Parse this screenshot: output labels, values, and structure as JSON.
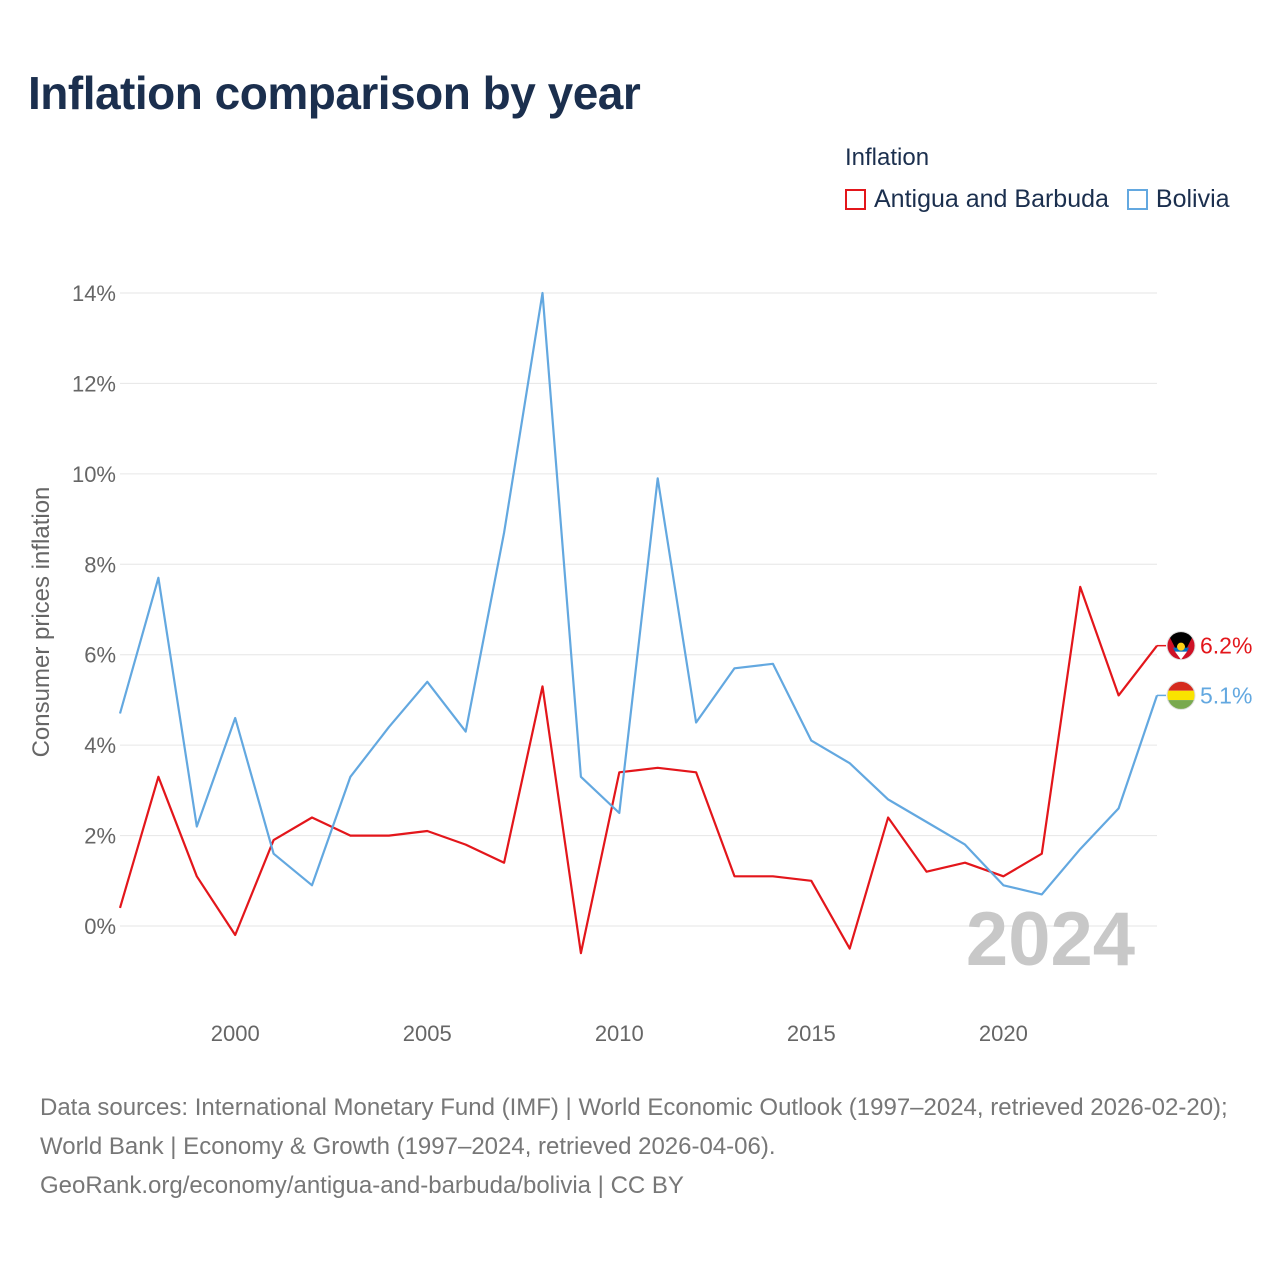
{
  "title": "Inflation comparison by year",
  "legend": {
    "title": "Inflation",
    "items": [
      {
        "label": "Antigua and Barbuda",
        "color": "#e3161b"
      },
      {
        "label": "Bolivia",
        "color": "#63a8e0"
      }
    ]
  },
  "chart_data": {
    "type": "line",
    "title": "Inflation comparison by year",
    "xlabel": "",
    "ylabel": "Consumer prices inflation",
    "x": [
      1997,
      1998,
      1999,
      2000,
      2001,
      2002,
      2003,
      2004,
      2005,
      2006,
      2007,
      2008,
      2009,
      2010,
      2011,
      2012,
      2013,
      2014,
      2015,
      2016,
      2017,
      2018,
      2019,
      2020,
      2021,
      2022,
      2023,
      2024
    ],
    "xlim": [
      1997,
      2024
    ],
    "xticks": [
      2000,
      2005,
      2010,
      2015,
      2020
    ],
    "ylim": [
      -1.5,
      14
    ],
    "yticks": [
      0,
      2,
      4,
      6,
      8,
      10,
      12,
      14
    ],
    "ytick_labels": [
      "0%",
      "2%",
      "4%",
      "6%",
      "8%",
      "10%",
      "12%",
      "14%"
    ],
    "grid": true,
    "year_watermark": "2024",
    "series": [
      {
        "name": "Antigua and Barbuda",
        "color": "#e3161b",
        "end_label": "6.2%",
        "values": [
          0.4,
          3.3,
          1.1,
          -0.2,
          1.9,
          2.4,
          2.0,
          2.0,
          2.1,
          1.8,
          1.4,
          5.3,
          -0.6,
          3.4,
          3.5,
          3.4,
          1.1,
          1.1,
          1.0,
          -0.5,
          2.4,
          1.2,
          1.4,
          1.1,
          1.6,
          7.5,
          5.1,
          6.2
        ]
      },
      {
        "name": "Bolivia",
        "color": "#63a8e0",
        "end_label": "5.1%",
        "values": [
          4.7,
          7.7,
          2.2,
          4.6,
          1.6,
          0.9,
          3.3,
          4.4,
          5.4,
          4.3,
          8.7,
          14.0,
          3.3,
          2.5,
          9.9,
          4.5,
          5.7,
          5.8,
          4.1,
          3.6,
          2.8,
          2.3,
          1.8,
          0.9,
          0.7,
          1.7,
          2.6,
          5.1
        ]
      }
    ]
  },
  "footer": {
    "sources": "Data sources: International Monetary Fund (IMF) | World Economic Outlook (1997–2024, retrieved 2026-02-20); World Bank | Economy & Growth (1997–2024, retrieved 2026-04-06).",
    "credit": "GeoRank.org/economy/antigua-and-barbuda/bolivia | CC BY"
  }
}
